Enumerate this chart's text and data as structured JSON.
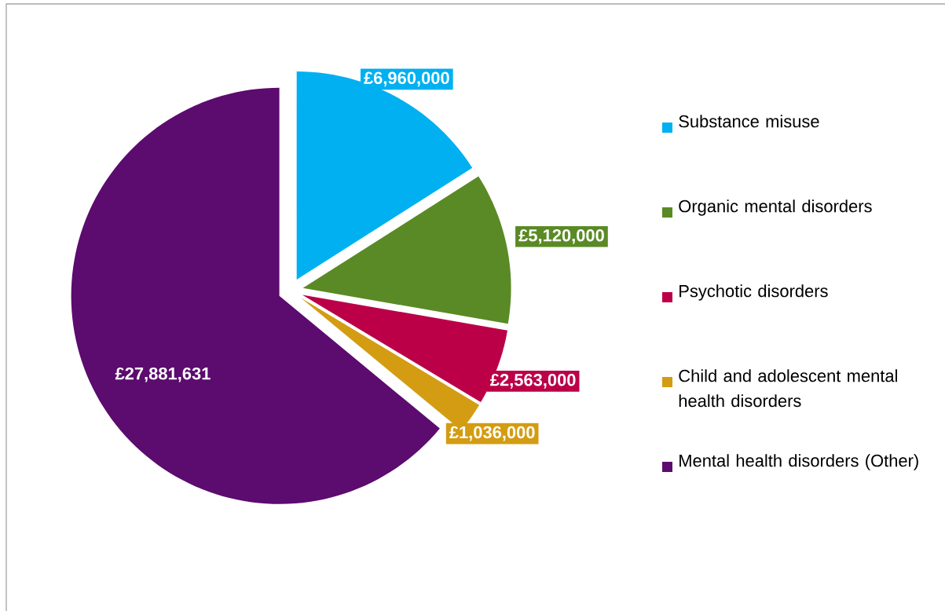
{
  "chart_data": {
    "type": "pie",
    "categories": [
      "Substance misuse",
      "Organic mental disorders",
      "Psychotic disorders",
      "Child and adolescent mental health disorders",
      "Mental health disorders (Other)"
    ],
    "values": [
      6960000,
      5120000,
      2563000,
      1036000,
      27881631
    ],
    "colors": [
      "#00b0f0",
      "#5a8a25",
      "#bb0048",
      "#d39c12",
      "#5c0b6e"
    ],
    "value_labels": [
      "£6,960,000",
      "£5,120,000",
      "£2,563,000",
      "£1,036,000",
      "£27,881,631"
    ],
    "legend": "right"
  }
}
